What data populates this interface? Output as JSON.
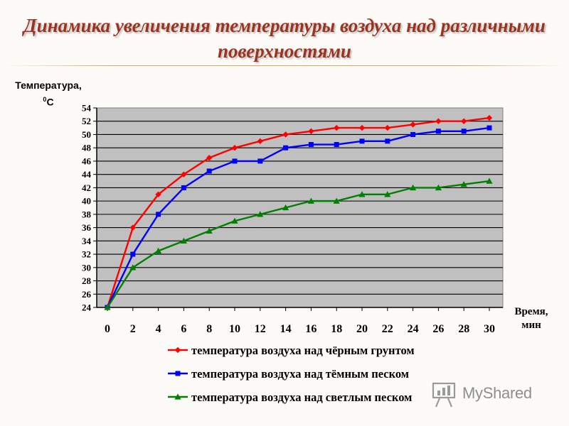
{
  "slide": {
    "title_line1": "Динамика увеличения температуры воздуха над различными",
    "title_line2": "поверхностями",
    "watermark_text": "MyShared"
  },
  "colors": {
    "title": "#993322",
    "plot_bg": "#c0c0c0",
    "series_black_soil": "#ff0000",
    "series_dark_sand": "#0000ff",
    "series_light_sand": "#008000"
  },
  "chart_data": {
    "type": "line",
    "title": "Динамика увеличения температуры воздуха над различными поверхностями",
    "ylabel_line1": "Температура,",
    "ylabel_unit_sup": "0",
    "ylabel_unit": "С",
    "xlabel_line1": "Время,",
    "xlabel_line2": "мин",
    "x": [
      0,
      2,
      4,
      6,
      8,
      10,
      12,
      14,
      16,
      18,
      20,
      22,
      24,
      26,
      28,
      30
    ],
    "x_tick_labels": [
      "0",
      "2",
      "4",
      "6",
      "8",
      "10",
      "12",
      "14",
      "16",
      "18",
      "20",
      "22",
      "24",
      "26",
      "28",
      "30"
    ],
    "ylim": [
      24,
      54
    ],
    "y_tick_labels": [
      "24",
      "26",
      "28",
      "30",
      "32",
      "34",
      "36",
      "38",
      "40",
      "42",
      "44",
      "46",
      "48",
      "50",
      "52",
      "54"
    ],
    "grid": "horizontal",
    "legend_position": "bottom",
    "series": [
      {
        "name": "температура воздуха над чёрным грунтом",
        "marker": "diamond",
        "color": "#ff0000",
        "values": [
          24,
          36,
          41,
          44,
          46.5,
          48,
          49,
          50,
          50.5,
          51,
          51,
          51,
          51.5,
          52,
          52,
          52.5
        ]
      },
      {
        "name": "температура воздуха над тёмным песком",
        "marker": "square",
        "color": "#0000ff",
        "values": [
          24,
          32,
          38,
          42,
          44.5,
          46,
          46,
          48,
          48.5,
          48.5,
          49,
          49,
          50,
          50.5,
          50.5,
          51
        ]
      },
      {
        "name": "температура воздуха над светлым песком",
        "marker": "triangle",
        "color": "#008000",
        "values": [
          24,
          30,
          32.5,
          34,
          35.5,
          37,
          38,
          39,
          40,
          40,
          41,
          41,
          42,
          42,
          42.5,
          43
        ]
      }
    ]
  }
}
